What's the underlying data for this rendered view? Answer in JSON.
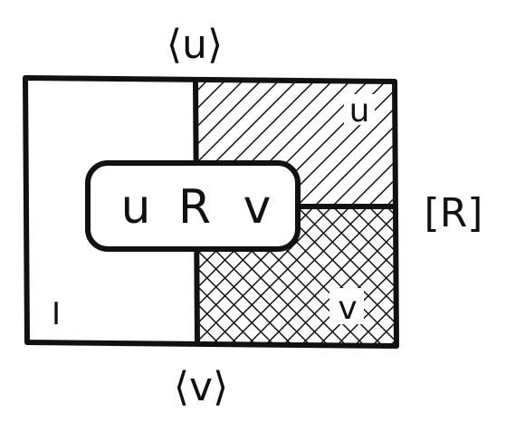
{
  "diagram": {
    "label_top": "⟨u⟩",
    "label_bottom": "⟨v⟩",
    "label_right": "[R]",
    "region_left": "I",
    "region_top_right": "u",
    "region_bottom_right": "v",
    "center_box": {
      "left": "u",
      "middle": "R",
      "right": "v"
    },
    "colors": {
      "ink": "#111111",
      "paper": "#ffffff"
    }
  }
}
